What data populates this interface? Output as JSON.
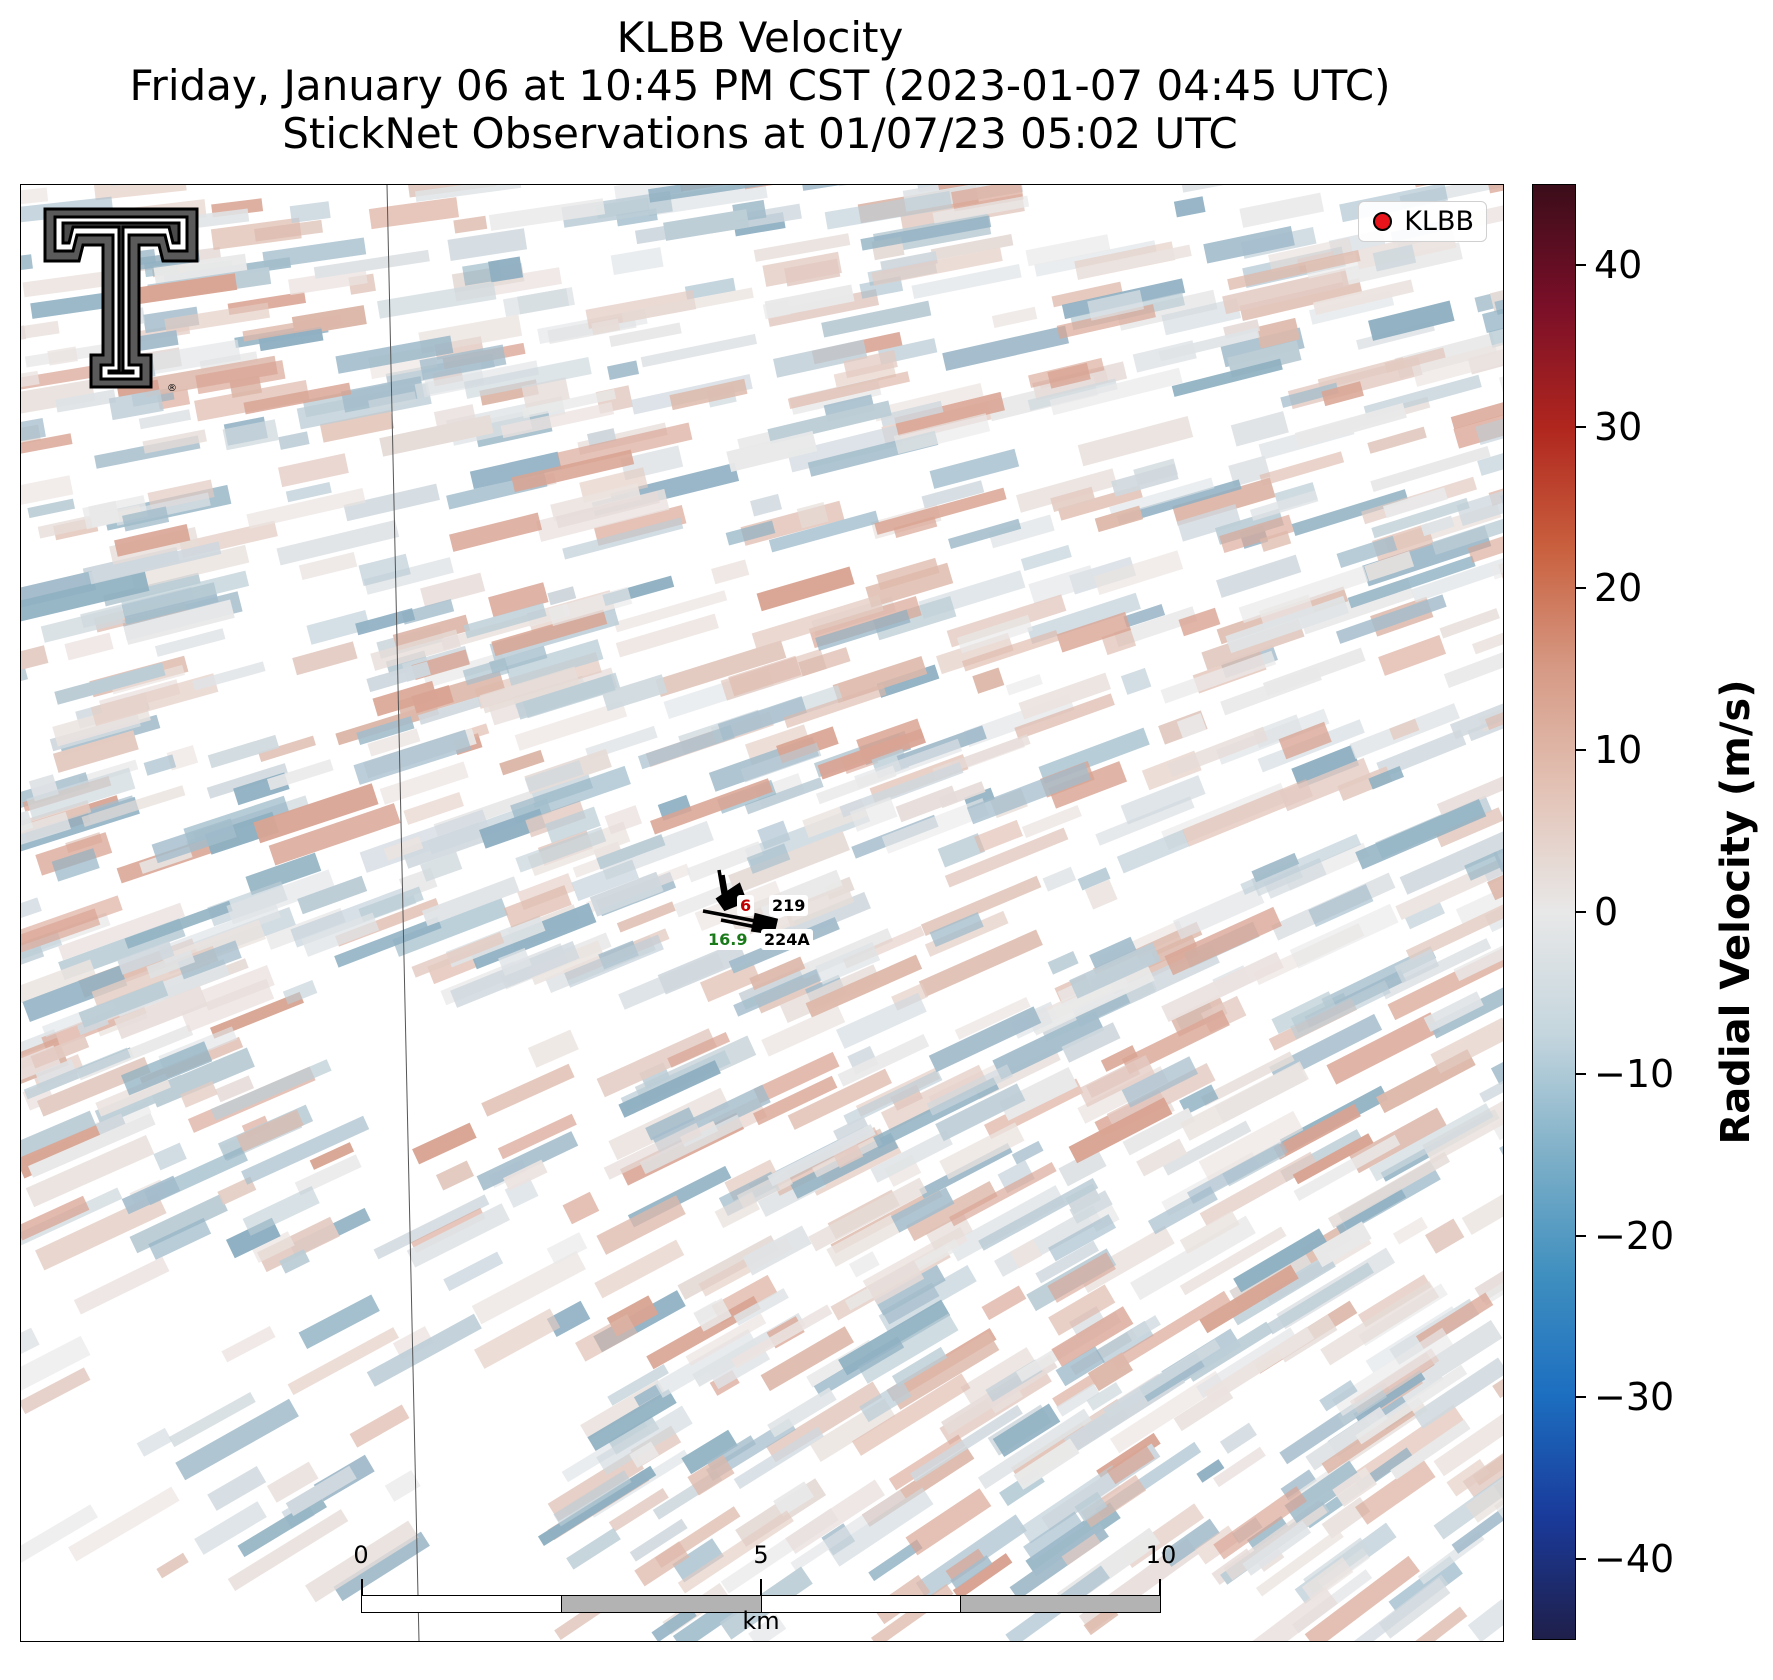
{
  "title": {
    "line1": "KLBB Velocity",
    "line2": "Friday, January 06 at 10:45 PM CST (2023-01-07 04:45 UTC)",
    "line3": "StickNet Observations at 01/07/23 05:02 UTC"
  },
  "legend": {
    "label": "KLBB",
    "marker_color": "#e8141b"
  },
  "stations": [
    {
      "id": "219",
      "value": "6",
      "value_color": "#c00000"
    },
    {
      "id": "224A",
      "value": "16.9",
      "value_color": "#1a7a1a"
    }
  ],
  "scalebar": {
    "ticks": [
      "0",
      "5",
      "10"
    ],
    "unit": "km"
  },
  "colorbar": {
    "title": "Radial Velocity (m/s)",
    "ticks": [
      "40",
      "30",
      "20",
      "10",
      "0",
      "−10",
      "−20",
      "−30",
      "−40"
    ],
    "range": [
      -45,
      45
    ],
    "colors": [
      "#1f1f4a",
      "#1a3a9a",
      "#1c6ec0",
      "#3f8fbf",
      "#7fb0c8",
      "#c5d6de",
      "#e8e8e8",
      "#e3c3b6",
      "#d69a85",
      "#c9603e",
      "#b0261e",
      "#7a0f28",
      "#3b0d1a"
    ]
  },
  "logo": {
    "name": "Texas Tech Double T"
  }
}
